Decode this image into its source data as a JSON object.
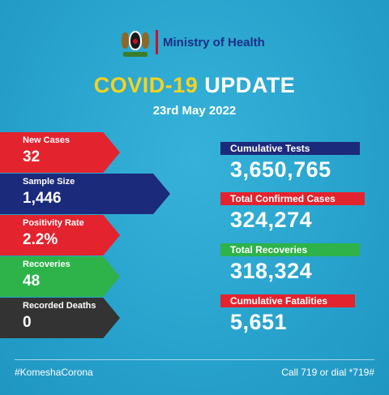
{
  "header": {
    "ministry": "Ministry of Health"
  },
  "title": {
    "covid": "COVID-19",
    "update": "UPDATE"
  },
  "date": "23rd May 2022",
  "left_stats": [
    {
      "label": "New Cases",
      "value": "32",
      "color": "#e3232e"
    },
    {
      "label": "Sample Size",
      "value": "1,446",
      "color": "#1b2a7a"
    },
    {
      "label": "Positivity Rate",
      "value": "2.2%",
      "color": "#e3232e"
    },
    {
      "label": "Recoveries",
      "value": "48",
      "color": "#2db34a"
    },
    {
      "label": "Recorded Deaths",
      "value": "0",
      "color": "#333333"
    }
  ],
  "right_stats": [
    {
      "label": "Cumulative Tests",
      "value": "3,650,765",
      "color": "#1b2a7a"
    },
    {
      "label": "Total Confirmed Cases",
      "value": "324,274",
      "color": "#e3232e"
    },
    {
      "label": "Total Recoveries",
      "value": "318,324",
      "color": "#2db34a"
    },
    {
      "label": "Cumulative Fatalities",
      "value": "5,651",
      "color": "#e3232e"
    }
  ],
  "footer": {
    "hashtag": "#KomeshaCorona",
    "call": "Call 719 or dial *719#"
  },
  "colors": {
    "background": "#2aa6cf",
    "accent_yellow": "#f5d21f",
    "navy": "#1b2f86"
  },
  "icons": {
    "logo": "kenya-coat-of-arms-icon"
  }
}
